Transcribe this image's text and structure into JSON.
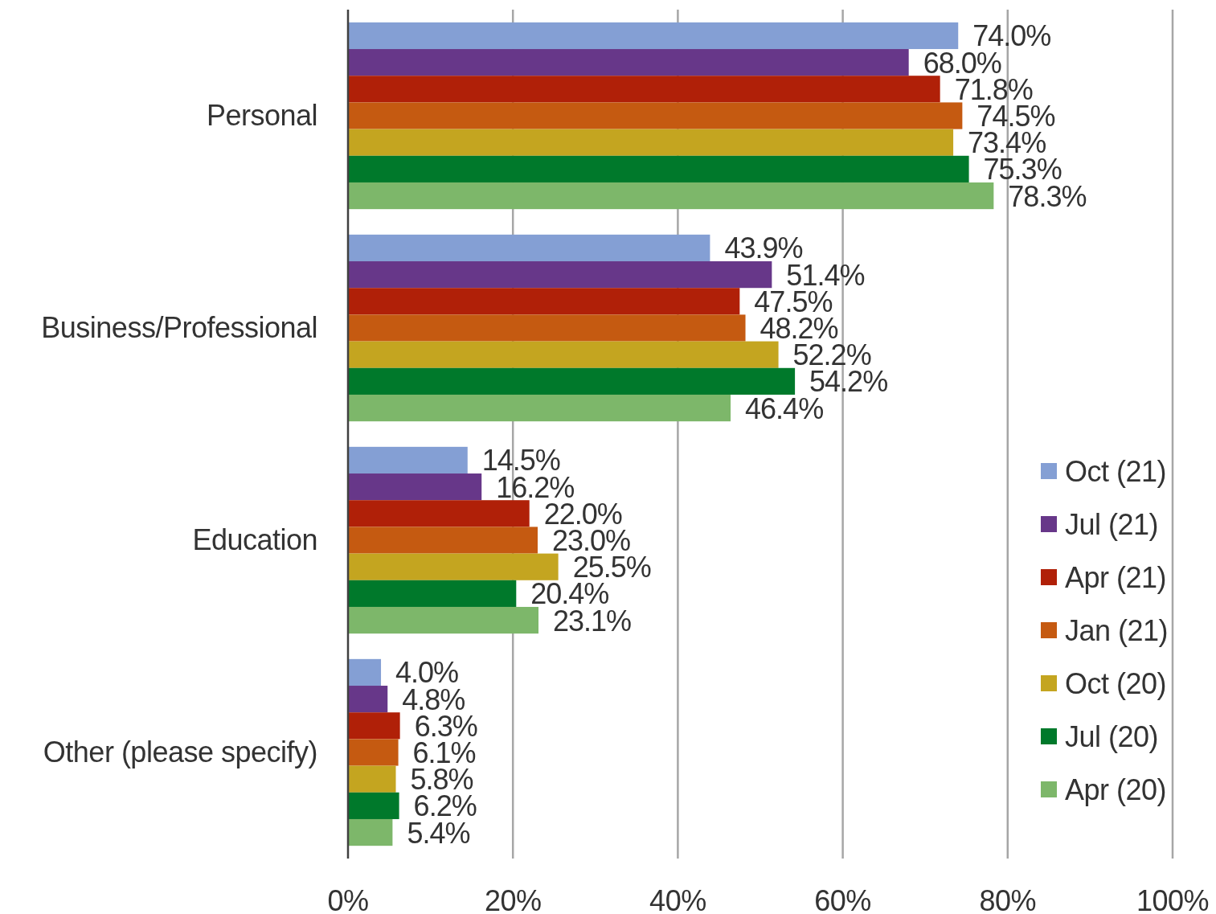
{
  "chart_data": {
    "type": "bar",
    "orientation": "horizontal",
    "categories": [
      "Personal",
      "Business/Professional",
      "Education",
      "Other (please specify)"
    ],
    "series": [
      {
        "name": "Oct (21)",
        "color": "#849fd4",
        "values": [
          74.0,
          43.9,
          14.5,
          4.0
        ],
        "value_labels": [
          "74.0%",
          "43.9%",
          "14.5%",
          "4.0%"
        ]
      },
      {
        "name": "Jul (21)",
        "color": "#673789",
        "values": [
          68.0,
          51.4,
          16.2,
          4.8
        ],
        "value_labels": [
          "68.0%",
          "51.4%",
          "16.2%",
          "4.8%"
        ]
      },
      {
        "name": "Apr (21)",
        "color": "#b02008",
        "values": [
          71.8,
          47.5,
          22.0,
          6.3
        ],
        "value_labels": [
          "71.8%",
          "47.5%",
          "22.0%",
          "6.3%"
        ]
      },
      {
        "name": "Jan (21)",
        "color": "#c55a11",
        "values": [
          74.5,
          48.2,
          23.0,
          6.1
        ],
        "value_labels": [
          "74.5%",
          "48.2%",
          "23.0%",
          "6.1%"
        ]
      },
      {
        "name": "Oct (20)",
        "color": "#c4a520",
        "values": [
          73.4,
          52.2,
          25.5,
          5.8
        ],
        "value_labels": [
          "73.4%",
          "52.2%",
          "25.5%",
          "5.8%"
        ]
      },
      {
        "name": "Jul (20)",
        "color": "#00792b",
        "values": [
          75.3,
          54.2,
          20.4,
          6.2
        ],
        "value_labels": [
          "75.3%",
          "54.2%",
          "20.4%",
          "6.2%"
        ]
      },
      {
        "name": "Apr (20)",
        "color": "#7db76a",
        "values": [
          78.3,
          46.4,
          23.1,
          5.4
        ],
        "value_labels": [
          "78.3%",
          "46.4%",
          "23.1%",
          "5.4%"
        ]
      }
    ],
    "xlim": [
      0,
      100
    ],
    "xticks": [
      {
        "value": 0,
        "label": "0%"
      },
      {
        "value": 20,
        "label": "20%"
      },
      {
        "value": 40,
        "label": "40%"
      },
      {
        "value": 60,
        "label": "60%"
      },
      {
        "value": 80,
        "label": "80%"
      },
      {
        "value": 100,
        "label": "100%"
      }
    ],
    "grid": "x",
    "legend": "right"
  }
}
